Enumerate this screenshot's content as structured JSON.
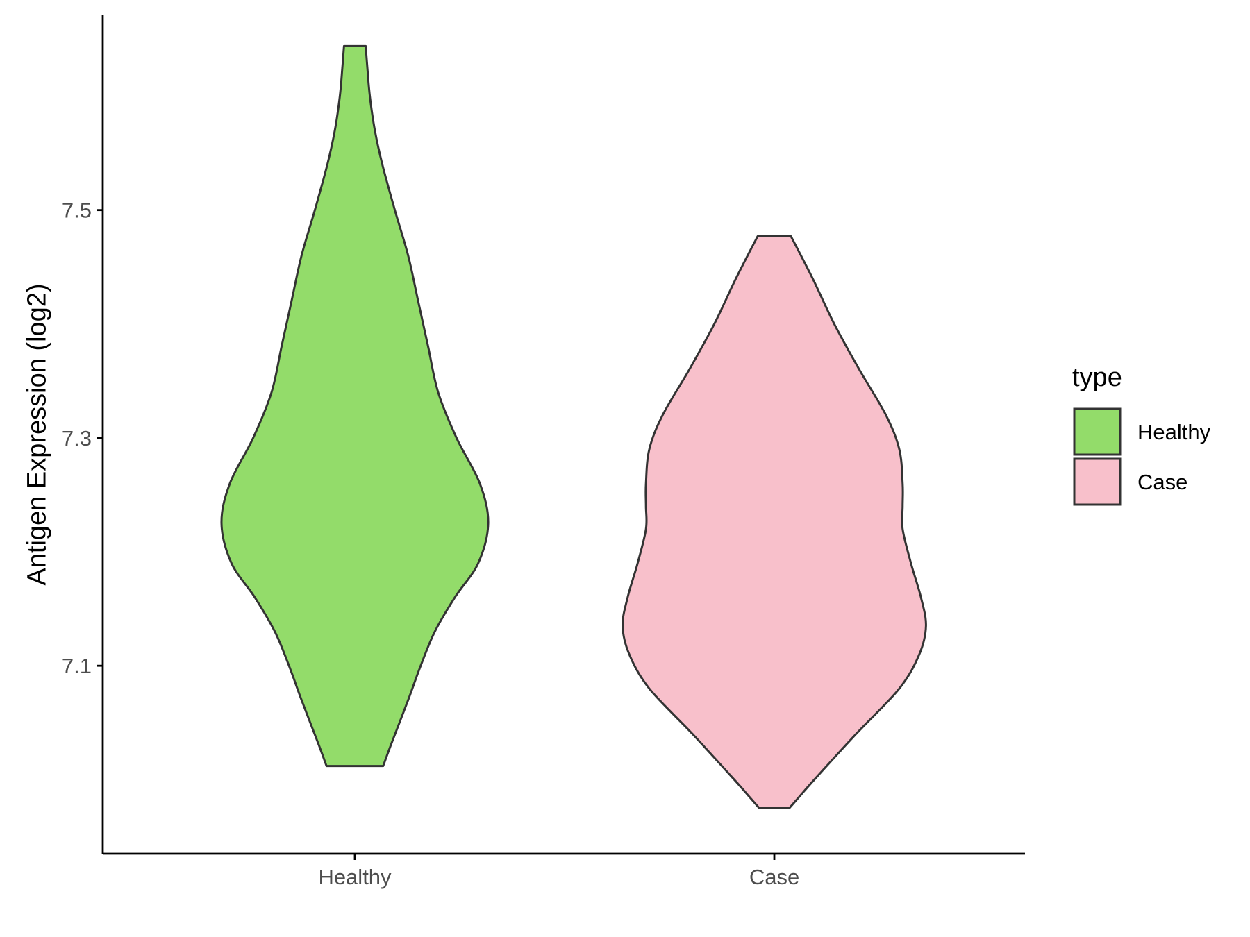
{
  "chart_data": {
    "type": "violin",
    "ylabel": "Antigen Expression (log2)",
    "xlabel": "",
    "categories": [
      "Healthy",
      "Case"
    ],
    "y_ticks": [
      "7.1",
      "7.3",
      "7.5"
    ],
    "y_tick_values": [
      7.1,
      7.3,
      7.5
    ],
    "ylim": [
      6.935,
      7.671
    ],
    "legend": {
      "title": "type",
      "position": "right",
      "entries": [
        {
          "label": "Healthy",
          "color": "#93DC6A"
        },
        {
          "label": "Case",
          "color": "#F8C0CB"
        }
      ]
    },
    "series": [
      {
        "category": "Healthy",
        "color": "#93DC6A",
        "y_min": 7.012,
        "y_max": 7.644,
        "profile": [
          [
            7.012,
            0.17
          ],
          [
            7.03,
            0.215
          ],
          [
            7.07,
            0.32
          ],
          [
            7.1,
            0.395
          ],
          [
            7.13,
            0.48
          ],
          [
            7.16,
            0.6
          ],
          [
            7.19,
            0.74
          ],
          [
            7.225,
            0.8
          ],
          [
            7.26,
            0.75
          ],
          [
            7.3,
            0.61
          ],
          [
            7.34,
            0.5
          ],
          [
            7.38,
            0.44
          ],
          [
            7.42,
            0.38
          ],
          [
            7.46,
            0.32
          ],
          [
            7.5,
            0.24
          ],
          [
            7.54,
            0.165
          ],
          [
            7.57,
            0.12
          ],
          [
            7.6,
            0.09
          ],
          [
            7.625,
            0.075
          ],
          [
            7.644,
            0.065
          ]
        ]
      },
      {
        "category": "Case",
        "color": "#F8C0CB",
        "y_min": 6.975,
        "y_max": 7.477,
        "profile": [
          [
            6.975,
            0.09
          ],
          [
            6.985,
            0.15
          ],
          [
            7.0,
            0.24
          ],
          [
            7.04,
            0.49
          ],
          [
            7.08,
            0.75
          ],
          [
            7.11,
            0.87
          ],
          [
            7.135,
            0.91
          ],
          [
            7.16,
            0.88
          ],
          [
            7.19,
            0.82
          ],
          [
            7.22,
            0.77
          ],
          [
            7.24,
            0.77
          ],
          [
            7.26,
            0.77
          ],
          [
            7.29,
            0.75
          ],
          [
            7.32,
            0.67
          ],
          [
            7.36,
            0.51
          ],
          [
            7.4,
            0.36
          ],
          [
            7.44,
            0.23
          ],
          [
            7.477,
            0.1
          ]
        ]
      }
    ]
  }
}
